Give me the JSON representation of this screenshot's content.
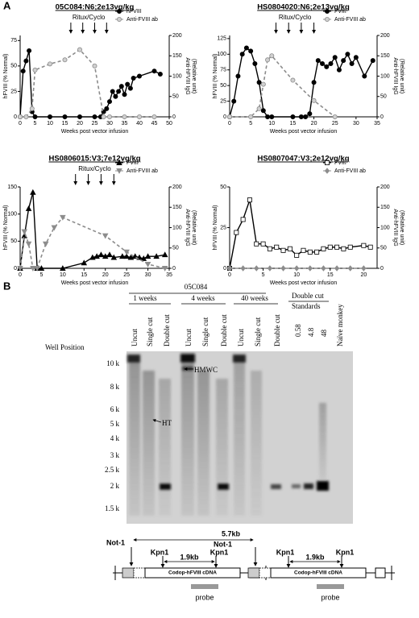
{
  "chart_data": [
    {
      "type": "line",
      "title": "05C084:N6;2e13vg/kg",
      "xlabel": "Weeks post vector infusion",
      "ylabel": "hFVIII (% Normal)",
      "y2label": [
        "Anti-hFVIII IgG",
        "(Relative unit)"
      ],
      "annotation": "Ritux/Cyclo",
      "arrows_x": [
        17,
        21,
        25,
        29
      ],
      "xlim": [
        0,
        50
      ],
      "xticks": [
        0,
        5,
        10,
        15,
        20,
        25,
        30,
        35,
        40,
        45,
        50
      ],
      "ylim": [
        0,
        80
      ],
      "yticks": [
        0,
        25,
        50,
        75
      ],
      "y2lim": [
        0,
        200
      ],
      "y2ticks": [
        0,
        50,
        100,
        150,
        200
      ],
      "legend": "upper right",
      "series": [
        {
          "name": "hFVIII",
          "color": "#000000",
          "marker_fill": "#000000",
          "marker": "circle",
          "dashed": false,
          "x": [
            0,
            1,
            2,
            3,
            4,
            5,
            10,
            15,
            20,
            25,
            27,
            28,
            29,
            30,
            31,
            32,
            33,
            34,
            35,
            36,
            37,
            38,
            40,
            45,
            47
          ],
          "values": [
            0,
            45,
            55,
            65,
            5,
            0,
            0,
            0,
            0,
            0,
            0,
            5,
            8,
            15,
            25,
            20,
            25,
            30,
            22,
            32,
            28,
            38,
            40,
            45,
            42
          ]
        },
        {
          "name": "Anti-FVIII ab",
          "color": "#8c8c8c",
          "marker_fill": "#d0d0d0",
          "marker": "circle",
          "dashed": true,
          "axis": "y2",
          "x": [
            0,
            2,
            4,
            5,
            10,
            15,
            20,
            25,
            28,
            30,
            35,
            40,
            45
          ],
          "values": [
            0,
            0,
            20,
            115,
            130,
            140,
            165,
            125,
            0,
            0,
            0,
            0,
            0
          ]
        }
      ]
    },
    {
      "type": "line",
      "title": "HS0804020:N6;2e13vg/kg",
      "xlabel": "Weeks post vector infusion",
      "ylabel": "hFVIII (% Normal)",
      "y2label": [
        "Anti-hFVIII IgG",
        "(Relative unit)"
      ],
      "annotation": "Ritux/Cyclo",
      "arrows_x": [
        11,
        14,
        17,
        20
      ],
      "xlim": [
        0,
        35
      ],
      "xticks": [
        0,
        5,
        10,
        15,
        20,
        25,
        30,
        35
      ],
      "ylim": [
        0,
        130
      ],
      "yticks": [
        0,
        25,
        50,
        75,
        100,
        125
      ],
      "y2lim": [
        0,
        200
      ],
      "y2ticks": [
        0,
        50,
        100,
        150,
        200
      ],
      "legend": "upper right",
      "series": [
        {
          "name": "FVIII",
          "color": "#000000",
          "marker_fill": "#000000",
          "marker": "circle",
          "dashed": false,
          "x": [
            0,
            1,
            2,
            3,
            4,
            5,
            6,
            7,
            8,
            9,
            10,
            15,
            17,
            18,
            19,
            20,
            21,
            22,
            23,
            24,
            25,
            26,
            27,
            28,
            29,
            30,
            32,
            34
          ],
          "values": [
            0,
            25,
            65,
            100,
            110,
            105,
            85,
            55,
            10,
            0,
            0,
            0,
            0,
            0,
            5,
            55,
            90,
            85,
            80,
            85,
            95,
            75,
            90,
            100,
            85,
            95,
            65,
            90
          ]
        },
        {
          "name": "Anti-FVIII ab",
          "color": "#8c8c8c",
          "marker_fill": "#d0d0d0",
          "marker": "circle",
          "dashed": true,
          "axis": "y2",
          "x": [
            0,
            5,
            7,
            8,
            9,
            10,
            15,
            20,
            25
          ],
          "values": [
            0,
            0,
            20,
            80,
            140,
            150,
            90,
            40,
            0
          ]
        }
      ]
    },
    {
      "type": "line",
      "title": "HS0806015:V3;7e12vg/kg",
      "xlabel": "Weeks post vector infusion",
      "ylabel": "hFVIII (% Normal)",
      "y2label": [
        "Anti-hFVIII IgG",
        "(Relative unit)"
      ],
      "annotation": "Ritux/Cyclo",
      "arrows_x": [
        13,
        16,
        19,
        22
      ],
      "xlim": [
        0,
        35
      ],
      "xticks": [
        0,
        5,
        10,
        15,
        20,
        25,
        30,
        35
      ],
      "ylim": [
        0,
        150
      ],
      "yticks": [
        0,
        50,
        100,
        150
      ],
      "y2lim": [
        0,
        200
      ],
      "y2ticks": [
        0,
        50,
        100,
        150,
        200
      ],
      "legend": "upper right",
      "series": [
        {
          "name": "FVIII",
          "color": "#000000",
          "marker_fill": "#000000",
          "marker": "triangle",
          "dashed": false,
          "x": [
            0,
            1,
            2,
            3,
            4,
            5,
            10,
            15,
            17,
            18,
            19,
            20,
            21,
            22,
            24,
            25,
            26,
            27,
            28,
            29,
            30,
            32,
            34
          ],
          "values": [
            0,
            60,
            110,
            140,
            0,
            0,
            0,
            10,
            20,
            22,
            25,
            22,
            25,
            20,
            22,
            22,
            20,
            22,
            20,
            18,
            22,
            22,
            25
          ]
        },
        {
          "name": "Anti-FVIII ab",
          "color": "#8c8c8c",
          "marker_fill": "#8c8c8c",
          "marker": "triangle-down",
          "dashed": true,
          "axis": "y2",
          "x": [
            0,
            1,
            2,
            3,
            4,
            6,
            8,
            10,
            20,
            25,
            30,
            34
          ],
          "values": [
            0,
            90,
            60,
            0,
            0,
            60,
            100,
            125,
            80,
            40,
            10,
            0
          ]
        }
      ]
    },
    {
      "type": "line",
      "title": "HS0807047:V3;2e12vg/kg",
      "xlabel": "Weeks post vector infusion",
      "ylabel": "hFVIII (% Normal)",
      "y2label": [
        "Anti-hFVIII IgG",
        "(Relative unit)"
      ],
      "xlim": [
        0,
        22
      ],
      "xticks": [
        0,
        5,
        10,
        15,
        20
      ],
      "ylim": [
        0,
        50
      ],
      "yticks": [
        0,
        25,
        50
      ],
      "y2lim": [
        0,
        200
      ],
      "y2ticks": [
        0,
        50,
        100,
        150,
        200
      ],
      "legend": "upper right",
      "series": [
        {
          "name": "FVIII",
          "color": "#000000",
          "marker_fill": "#ffffff",
          "marker": "square",
          "dashed": false,
          "x": [
            0,
            1,
            2,
            3,
            4,
            5,
            6,
            7,
            8,
            9,
            10,
            11,
            12,
            13,
            14,
            15,
            16,
            17,
            18,
            20,
            21
          ],
          "values": [
            0,
            22,
            30,
            42,
            15,
            15,
            12,
            13,
            11,
            12,
            8,
            11,
            10,
            10,
            12,
            13,
            13,
            12,
            13,
            14,
            13
          ]
        },
        {
          "name": "Anti-FVIII ab",
          "color": "#8c8c8c",
          "marker_fill": "#8c8c8c",
          "marker": "diamond",
          "dashed": true,
          "axis": "y2",
          "x": [
            0,
            2,
            4,
            6,
            8,
            10,
            12,
            14,
            16,
            18,
            20
          ],
          "values": [
            0,
            0,
            0,
            0,
            0,
            0,
            0,
            0,
            0,
            0,
            0
          ]
        }
      ]
    }
  ],
  "panel_labels": [
    "A",
    "B"
  ],
  "gel": {
    "sample": "05C084",
    "groups": [
      "1 weeks",
      "4 weeks",
      "40 weeks"
    ],
    "standards_group": [
      "Double cut",
      "Standards"
    ],
    "lanes": [
      "Uncut",
      "Single cut",
      "Double cut",
      "Uncut",
      "Single cut",
      "Double cut",
      "Uncut",
      "Single cut",
      "Double cut",
      "0.58",
      "4.8",
      "48",
      "Naïve monkey"
    ],
    "well_label": "Well Position",
    "ladder": [
      "10 k",
      "8 k",
      "6 k",
      "5 k",
      "4 k",
      "3 k",
      "2.5 k",
      "2 k",
      "1.5 k"
    ],
    "annotations": [
      "HMWC",
      "HT"
    ]
  },
  "diagram": {
    "not1": [
      "Not-1",
      "Not-1"
    ],
    "distance": "5.7kb",
    "units": [
      {
        "kpn": [
          "Kpn1",
          "Kpn1"
        ],
        "size": "1.9kb",
        "cdna": "Codop-hFVIII cDNA",
        "probe": "probe"
      },
      {
        "kpn": [
          "Kpn1",
          "Kpn1"
        ],
        "size": "1.9kb",
        "cdna": "Codop-hFVIII cDNA",
        "probe": "probe"
      }
    ]
  }
}
